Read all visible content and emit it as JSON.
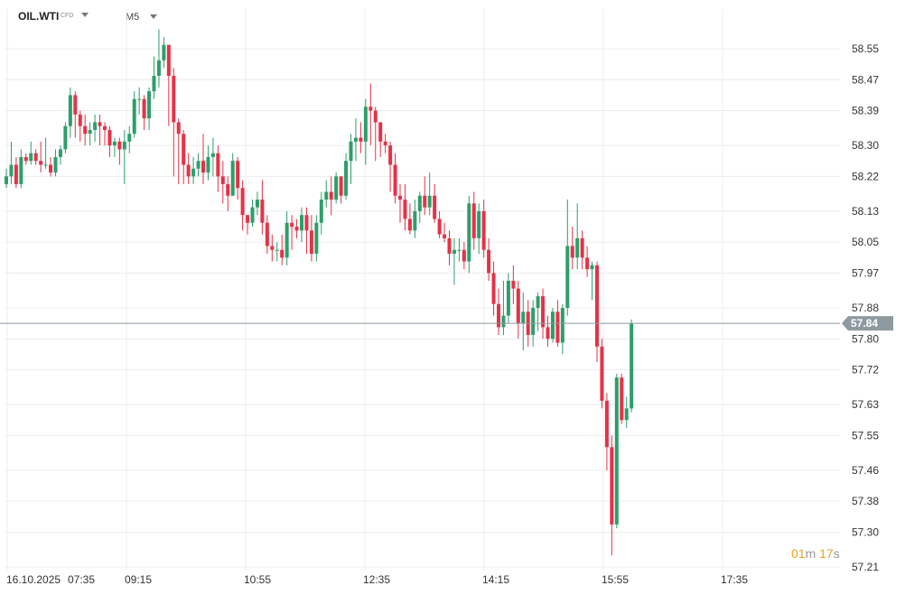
{
  "header": {
    "symbol": "OIL.WTI",
    "instrument_type": "CFD",
    "timeframe": "M5"
  },
  "countdown": {
    "minutes": "01",
    "minutes_unit": "m",
    "seconds": "17",
    "seconds_unit": "s"
  },
  "current_price_label": "57.84",
  "colors": {
    "up": "#2e9e6b",
    "down": "#e53247",
    "grid": "#ececec",
    "price_line": "#8e9aa0",
    "price_tag": "#8e9aa0",
    "countdown": "#f0a11b"
  },
  "chart_data": {
    "type": "candlestick",
    "title": "",
    "current_price": 57.84,
    "y_tick_labels": [
      "58.55",
      "58.47",
      "58.39",
      "58.30",
      "58.22",
      "58.13",
      "58.05",
      "57.97",
      "57.88",
      "57.80",
      "57.72",
      "57.63",
      "57.55",
      "57.46",
      "57.38",
      "57.30",
      "57.21"
    ],
    "x_tick_labels": [
      "16.10.2025",
      "07:35",
      "09:15",
      "10:55",
      "12:35",
      "14:15",
      "15:55",
      "17:35"
    ],
    "ylim": [
      57.2,
      58.6
    ],
    "grid": true,
    "candles": [
      [
        58.2,
        58.22,
        58.19,
        58.24
      ],
      [
        58.22,
        58.25,
        58.2,
        58.31
      ],
      [
        58.25,
        58.2,
        58.19,
        58.27
      ],
      [
        58.2,
        58.27,
        58.19,
        58.29
      ],
      [
        58.27,
        58.26,
        58.25,
        58.28
      ],
      [
        58.26,
        58.28,
        58.25,
        58.31
      ],
      [
        58.28,
        58.26,
        58.25,
        58.29
      ],
      [
        58.26,
        58.25,
        58.23,
        58.31
      ],
      [
        58.25,
        58.25,
        58.24,
        58.32
      ],
      [
        58.25,
        58.23,
        58.22,
        58.27
      ],
      [
        58.23,
        58.27,
        58.22,
        58.29
      ],
      [
        58.27,
        58.29,
        58.25,
        58.3
      ],
      [
        58.29,
        58.35,
        58.28,
        58.36
      ],
      [
        58.35,
        58.43,
        58.32,
        58.45
      ],
      [
        58.43,
        58.38,
        58.32,
        58.44
      ],
      [
        58.38,
        58.35,
        58.31,
        58.39
      ],
      [
        58.35,
        58.33,
        58.3,
        58.38
      ],
      [
        58.33,
        58.34,
        58.3,
        58.36
      ],
      [
        58.34,
        58.36,
        58.31,
        58.38
      ],
      [
        58.36,
        58.35,
        58.3,
        58.38
      ],
      [
        58.35,
        58.34,
        58.3,
        58.36
      ],
      [
        58.34,
        58.3,
        58.27,
        58.35
      ],
      [
        58.3,
        58.31,
        58.27,
        58.32
      ],
      [
        58.31,
        58.29,
        58.25,
        58.32
      ],
      [
        58.29,
        58.31,
        58.2,
        58.34
      ],
      [
        58.31,
        58.33,
        58.28,
        58.35
      ],
      [
        58.33,
        58.42,
        58.32,
        58.44
      ],
      [
        58.42,
        58.42,
        58.38,
        58.45
      ],
      [
        58.42,
        58.37,
        58.34,
        58.43
      ],
      [
        58.37,
        58.44,
        58.34,
        58.45
      ],
      [
        58.44,
        58.48,
        58.42,
        58.53
      ],
      [
        58.48,
        58.52,
        58.45,
        58.6
      ],
      [
        58.52,
        58.56,
        58.5,
        58.58
      ],
      [
        58.56,
        58.48,
        58.35,
        58.56
      ],
      [
        58.48,
        58.36,
        58.22,
        58.5
      ],
      [
        58.36,
        58.33,
        58.2,
        58.37
      ],
      [
        58.33,
        58.25,
        58.2,
        58.34
      ],
      [
        58.25,
        58.22,
        58.2,
        58.28
      ],
      [
        58.22,
        58.24,
        58.2,
        58.27
      ],
      [
        58.24,
        58.26,
        58.22,
        58.28
      ],
      [
        58.26,
        58.23,
        58.2,
        58.33
      ],
      [
        58.23,
        58.27,
        58.21,
        58.3
      ],
      [
        58.27,
        58.28,
        58.22,
        58.32
      ],
      [
        58.28,
        58.22,
        58.18,
        58.3
      ],
      [
        58.22,
        58.2,
        58.15,
        58.26
      ],
      [
        58.2,
        58.17,
        58.13,
        58.22
      ],
      [
        58.17,
        58.26,
        58.17,
        58.28
      ],
      [
        58.26,
        58.19,
        58.16,
        58.27
      ],
      [
        58.19,
        58.12,
        58.08,
        58.21
      ],
      [
        58.12,
        58.1,
        58.07,
        58.12
      ],
      [
        58.1,
        58.14,
        58.09,
        58.16
      ],
      [
        58.14,
        58.16,
        58.12,
        58.18
      ],
      [
        58.16,
        58.1,
        58.07,
        58.21
      ],
      [
        58.1,
        58.04,
        58.02,
        58.12
      ],
      [
        58.04,
        58.03,
        58.0,
        58.07
      ],
      [
        58.03,
        58.03,
        58.0,
        58.05
      ],
      [
        58.03,
        58.01,
        57.99,
        58.07
      ],
      [
        58.01,
        58.1,
        57.99,
        58.13
      ],
      [
        58.1,
        58.09,
        58.03,
        58.12
      ],
      [
        58.09,
        58.08,
        58.06,
        58.11
      ],
      [
        58.08,
        58.12,
        58.05,
        58.14
      ],
      [
        58.12,
        58.08,
        58.02,
        58.14
      ],
      [
        58.08,
        58.02,
        58.0,
        58.12
      ],
      [
        58.02,
        58.1,
        58.0,
        58.12
      ],
      [
        58.1,
        58.16,
        58.07,
        58.18
      ],
      [
        58.16,
        58.18,
        58.14,
        58.21
      ],
      [
        58.18,
        58.16,
        58.12,
        58.22
      ],
      [
        58.16,
        58.22,
        58.15,
        58.23
      ],
      [
        58.22,
        58.17,
        58.15,
        58.22
      ],
      [
        58.17,
        58.26,
        58.16,
        58.28
      ],
      [
        58.26,
        58.31,
        58.2,
        58.33
      ],
      [
        58.31,
        58.32,
        58.26,
        58.37
      ],
      [
        58.32,
        58.31,
        58.28,
        58.36
      ],
      [
        58.31,
        58.4,
        58.25,
        58.42
      ],
      [
        58.4,
        58.39,
        58.3,
        58.46
      ],
      [
        58.39,
        58.36,
        58.26,
        58.4
      ],
      [
        58.36,
        58.31,
        58.27,
        58.36
      ],
      [
        58.31,
        58.3,
        58.28,
        58.33
      ],
      [
        58.3,
        58.25,
        58.18,
        58.31
      ],
      [
        58.25,
        58.17,
        58.15,
        58.28
      ],
      [
        58.17,
        58.16,
        58.1,
        58.2
      ],
      [
        58.16,
        58.11,
        58.08,
        58.2
      ],
      [
        58.11,
        58.08,
        58.07,
        58.15
      ],
      [
        58.08,
        58.13,
        58.06,
        58.16
      ],
      [
        58.13,
        58.17,
        58.1,
        58.18
      ],
      [
        58.17,
        58.14,
        58.12,
        58.22
      ],
      [
        58.14,
        58.17,
        58.12,
        58.23
      ],
      [
        58.17,
        58.11,
        58.1,
        58.2
      ],
      [
        58.11,
        58.07,
        58.06,
        58.13
      ],
      [
        58.07,
        58.06,
        58.05,
        58.1
      ],
      [
        58.06,
        58.02,
        57.99,
        58.08
      ],
      [
        58.02,
        58.03,
        57.94,
        58.06
      ],
      [
        58.03,
        58.03,
        58.0,
        58.06
      ],
      [
        58.03,
        58.0,
        57.98,
        58.05
      ],
      [
        58.0,
        58.15,
        57.97,
        58.17
      ],
      [
        58.15,
        58.06,
        58.03,
        58.18
      ],
      [
        58.06,
        58.13,
        58.02,
        58.15
      ],
      [
        58.13,
        58.03,
        58.01,
        58.16
      ],
      [
        58.03,
        57.97,
        57.95,
        58.06
      ],
      [
        57.97,
        57.89,
        57.86,
        58.0
      ],
      [
        57.89,
        57.83,
        57.81,
        57.93
      ],
      [
        57.83,
        57.86,
        57.81,
        57.95
      ],
      [
        57.86,
        57.95,
        57.84,
        57.97
      ],
      [
        57.95,
        57.93,
        57.89,
        57.99
      ],
      [
        57.93,
        57.84,
        57.8,
        57.95
      ],
      [
        57.84,
        57.87,
        57.77,
        57.92
      ],
      [
        57.87,
        57.81,
        57.78,
        57.9
      ],
      [
        57.81,
        57.88,
        57.78,
        57.9
      ],
      [
        57.88,
        57.91,
        57.82,
        57.92
      ],
      [
        57.91,
        57.83,
        57.8,
        57.93
      ],
      [
        57.83,
        57.8,
        57.78,
        57.86
      ],
      [
        57.8,
        57.87,
        57.79,
        57.88
      ],
      [
        57.87,
        57.79,
        57.78,
        57.9
      ],
      [
        57.79,
        57.88,
        57.76,
        57.89
      ],
      [
        57.88,
        58.04,
        57.86,
        58.16
      ],
      [
        58.04,
        58.01,
        57.98,
        58.09
      ],
      [
        58.01,
        58.06,
        57.98,
        58.15
      ],
      [
        58.06,
        58.01,
        57.98,
        58.08
      ],
      [
        58.01,
        57.98,
        57.96,
        58.04
      ],
      [
        57.98,
        57.99,
        57.9,
        58.0
      ],
      [
        57.99,
        57.78,
        57.74,
        58.0
      ],
      [
        57.78,
        57.64,
        57.62,
        57.8
      ],
      [
        57.64,
        57.52,
        57.46,
        57.66
      ],
      [
        57.52,
        57.32,
        57.24,
        57.55
      ],
      [
        57.32,
        57.7,
        57.31,
        57.71
      ],
      [
        57.7,
        57.59,
        57.58,
        57.71
      ],
      [
        57.59,
        57.62,
        57.57,
        57.65
      ],
      [
        57.62,
        57.84,
        57.61,
        57.85
      ]
    ]
  }
}
